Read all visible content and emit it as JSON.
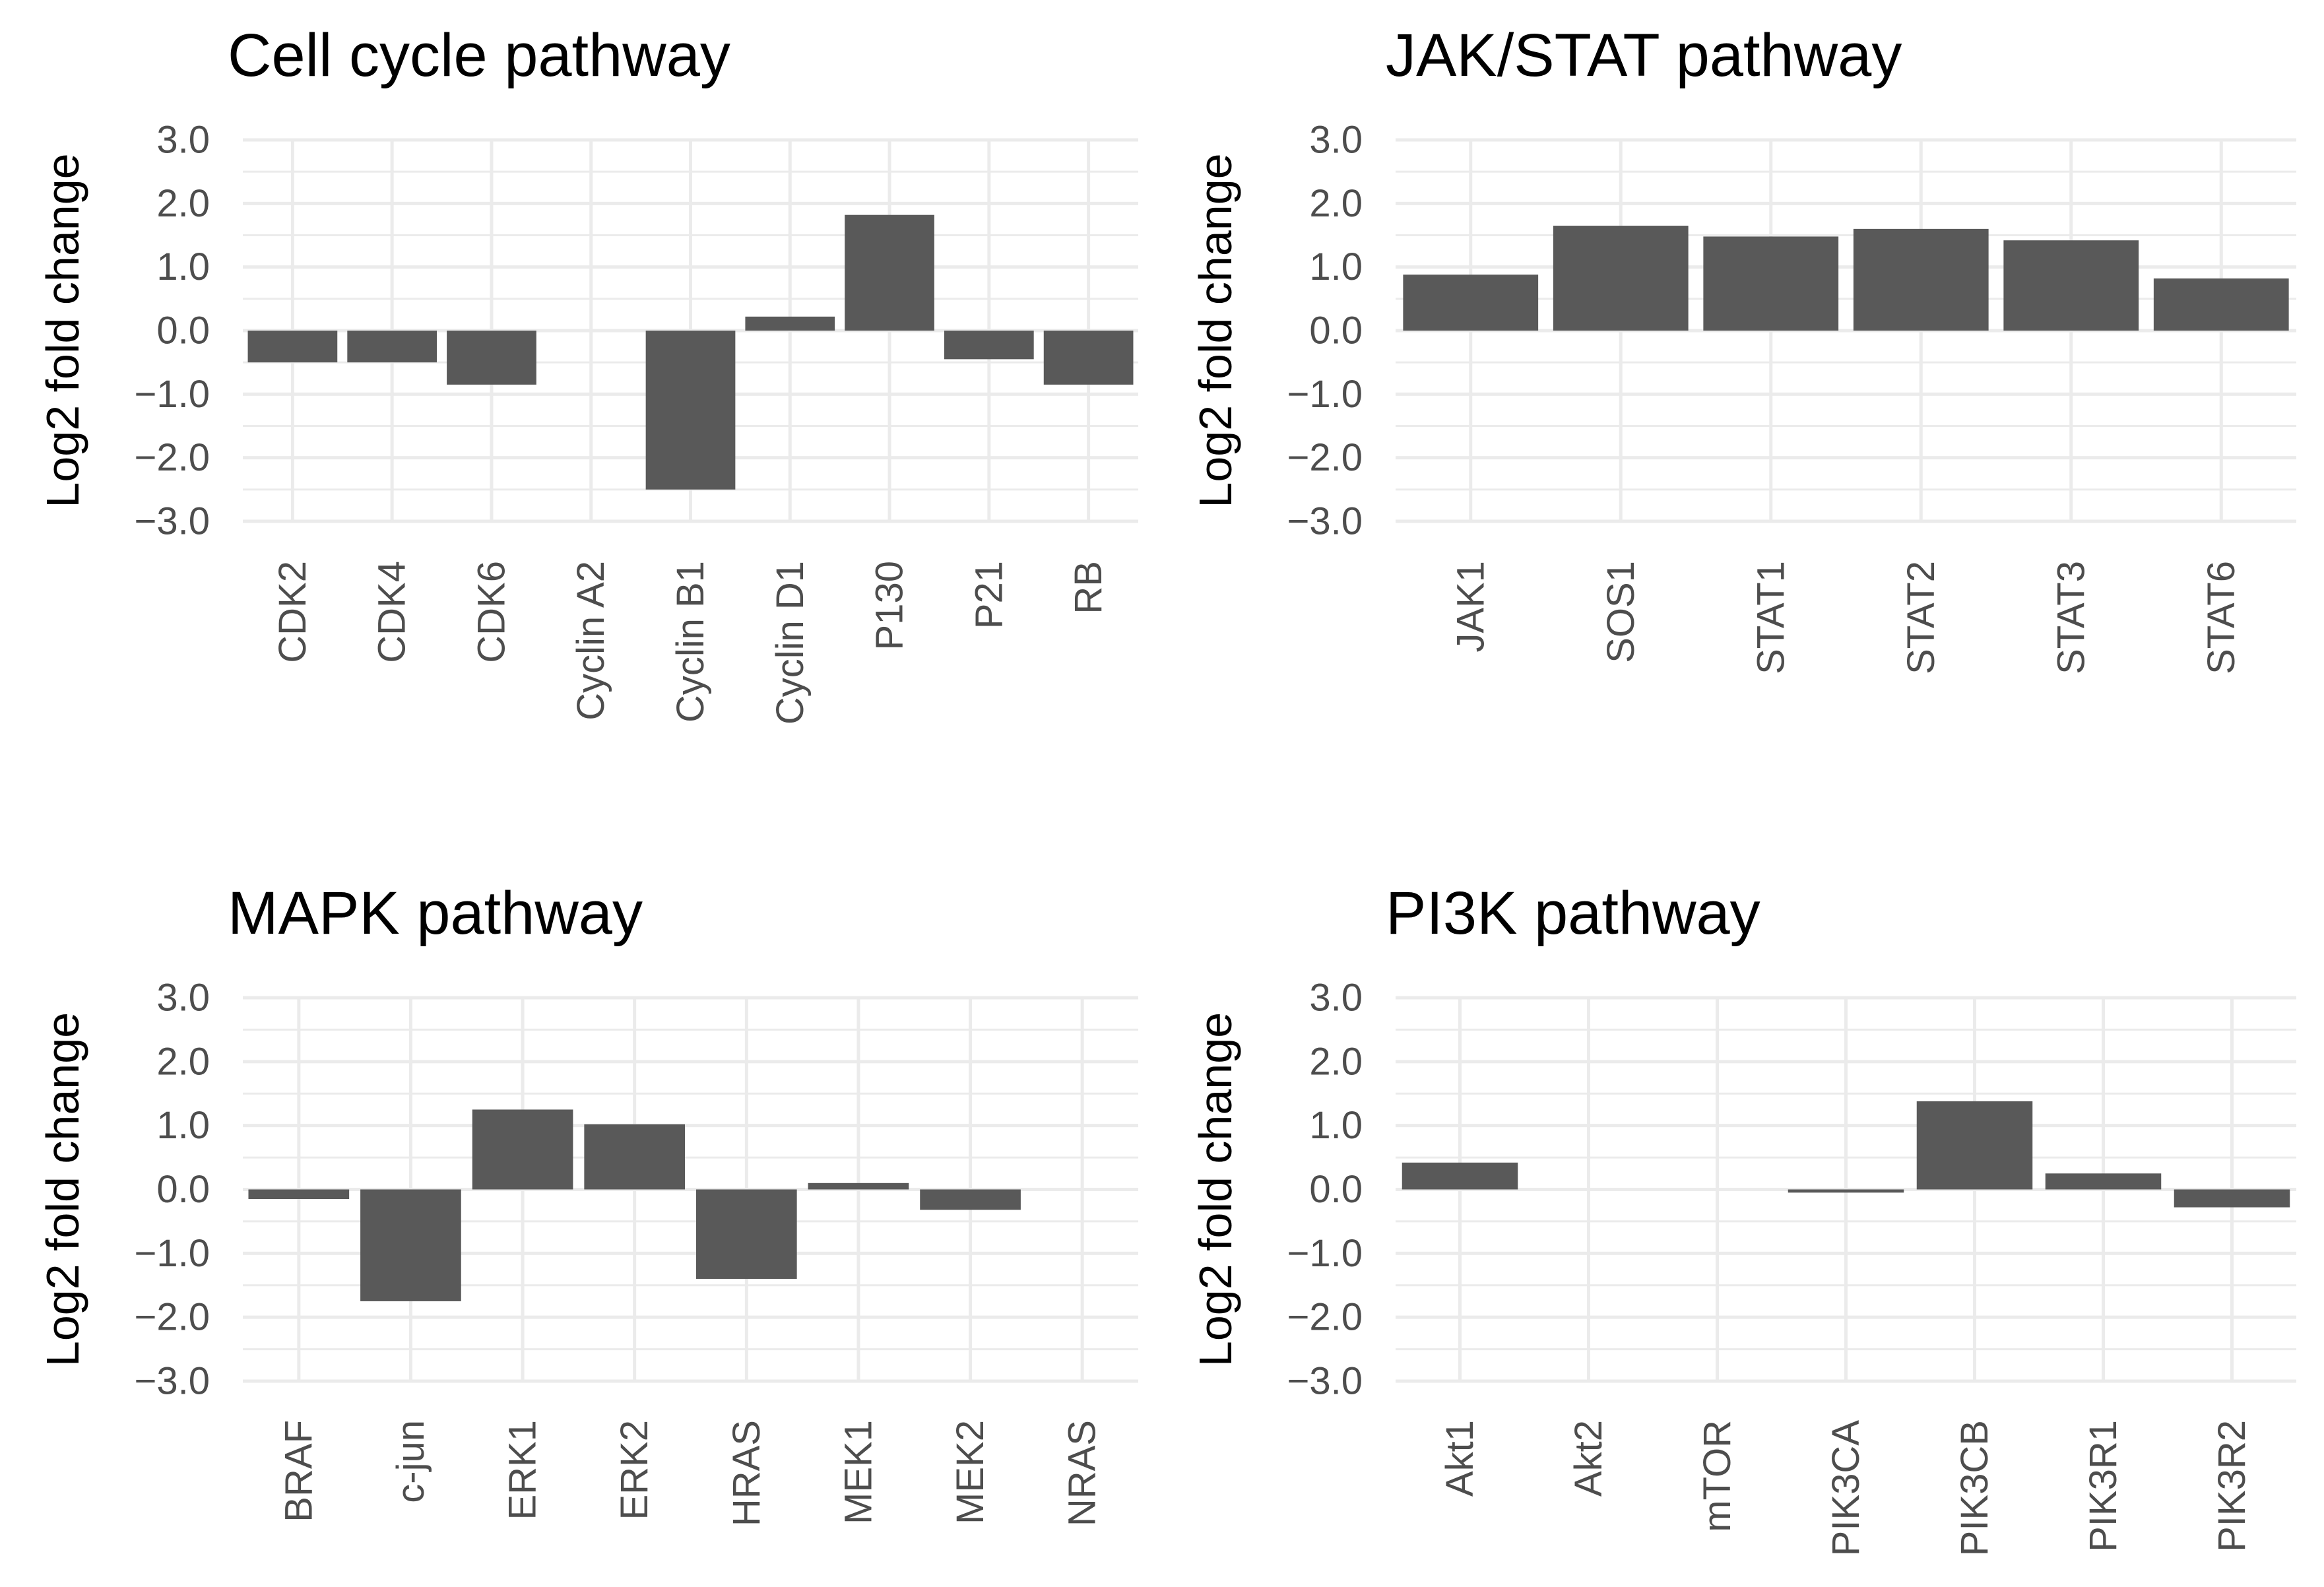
{
  "chart_data": [
    {
      "type": "bar",
      "title": "Cell cycle pathway",
      "xlabel": "",
      "ylabel": "Log2 fold change",
      "ylim": [
        -3,
        3
      ],
      "yticks": [
        "3.0",
        "2.0",
        "1.0",
        "0.0",
        "-1.0",
        "-2.0",
        "-3.0"
      ],
      "grid": true,
      "categories": [
        "CDK2",
        "CDK4",
        "CDK6",
        "Cyclin A2",
        "Cyclin B1",
        "Cyclin D1",
        "P130",
        "P21",
        "RB"
      ],
      "values": [
        -0.5,
        -0.5,
        -0.85,
        0.0,
        -2.5,
        0.22,
        1.82,
        -0.45,
        -0.85
      ],
      "bar_color": "#595959"
    },
    {
      "type": "bar",
      "title": "JAK/STAT pathway",
      "xlabel": "",
      "ylabel": "Log2 fold change",
      "ylim": [
        -3,
        3
      ],
      "yticks": [
        "3.0",
        "2.0",
        "1.0",
        "0.0",
        "-1.0",
        "-2.0",
        "-3.0"
      ],
      "grid": true,
      "categories": [
        "JAK1",
        "SOS1",
        "STAT1",
        "STAT2",
        "STAT3",
        "STAT6"
      ],
      "values": [
        0.88,
        1.65,
        1.48,
        1.6,
        1.42,
        0.82
      ],
      "bar_color": "#595959"
    },
    {
      "type": "bar",
      "title": "MAPK pathway",
      "xlabel": "",
      "ylabel": "Log2 fold change",
      "ylim": [
        -3,
        3
      ],
      "yticks": [
        "3.0",
        "2.0",
        "1.0",
        "0.0",
        "-1.0",
        "-2.0",
        "-3.0"
      ],
      "grid": true,
      "categories": [
        "BRAF",
        "c-jun",
        "ERK1",
        "ERK2",
        "HRAS",
        "MEK1",
        "MEK2",
        "NRAS"
      ],
      "values": [
        -0.15,
        -1.75,
        1.25,
        1.02,
        -1.4,
        0.1,
        -0.32,
        0.0
      ],
      "bar_color": "#595959"
    },
    {
      "type": "bar",
      "title": "PI3K pathway",
      "xlabel": "",
      "ylabel": "Log2 fold change",
      "ylim": [
        -3,
        3
      ],
      "yticks": [
        "3.0",
        "2.0",
        "1.0",
        "0.0",
        "-1.0",
        "-2.0",
        "-3.0"
      ],
      "grid": true,
      "categories": [
        "Akt1",
        "Akt2",
        "mTOR",
        "PIK3CA",
        "PIK3CB",
        "PIK3R1",
        "PIK3R2"
      ],
      "values": [
        0.42,
        0.0,
        0.0,
        -0.05,
        1.38,
        0.25,
        -0.28
      ],
      "bar_color": "#595959"
    }
  ]
}
